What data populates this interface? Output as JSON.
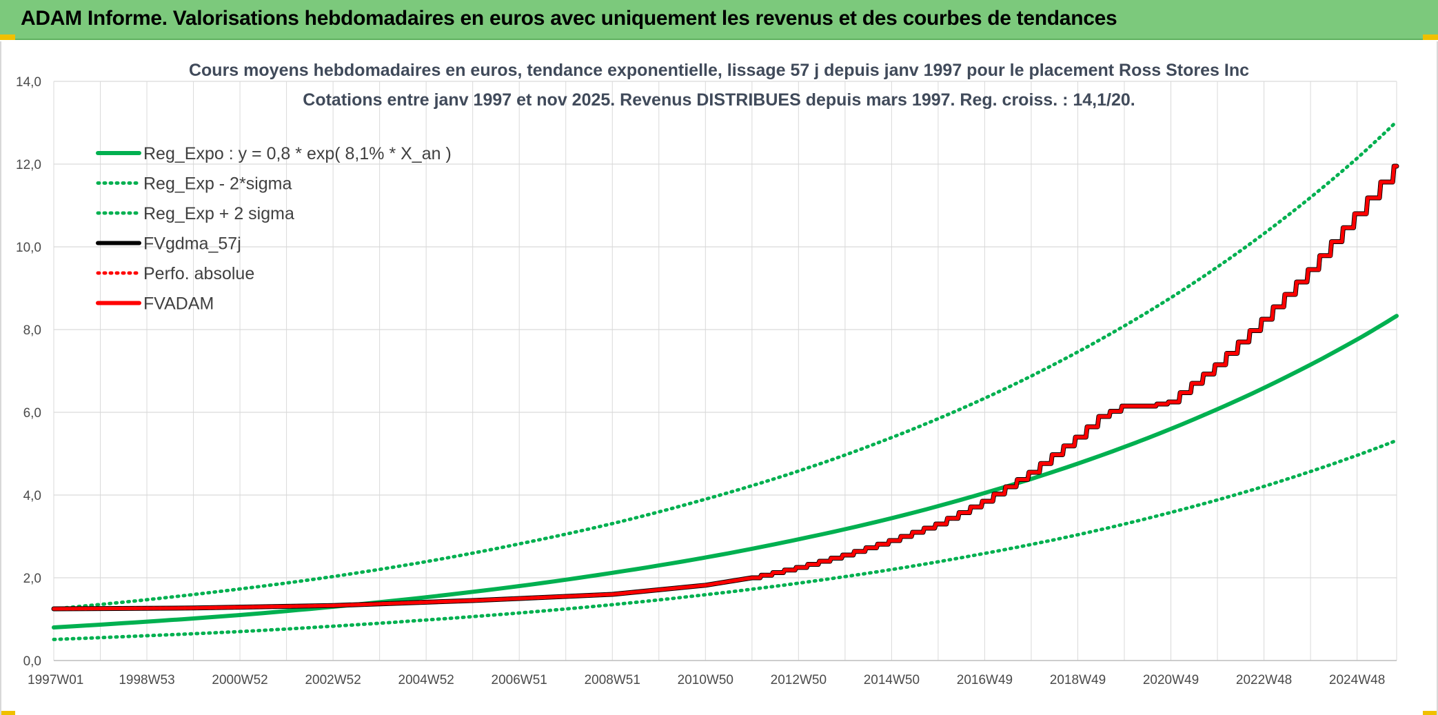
{
  "header": {
    "title": "ADAM Informe. Valorisations hebdomadaires en euros avec uniquement les revenus et des courbes de tendances"
  },
  "colors": {
    "header_bg": "#7cc97c",
    "green": "#00b050",
    "red": "#ff0000",
    "black": "#000000",
    "grid": "#d9d9d9"
  },
  "chart_data": {
    "type": "line",
    "title": "Cours moyens hebdomadaires en euros, tendance exponentielle, lissage 57 j depuis janv 1997 pour le placement Ross Stores Inc",
    "subtitle": "Cotations entre janv 1997 et nov 2025. Revenus DISTRIBUES depuis mars 1997. Reg. croiss. : 14,1/20.",
    "xlabel": "",
    "ylabel": "",
    "ylim": [
      0,
      14
    ],
    "xlim": [
      1997.0,
      2025.85
    ],
    "y_ticks": [
      "0,0",
      "2,0",
      "4,0",
      "6,0",
      "8,0",
      "10,0",
      "12,0",
      "14,0"
    ],
    "y_tick_values": [
      0,
      2,
      4,
      6,
      8,
      10,
      12,
      14
    ],
    "x_tick_labels": [
      "1997W01",
      "1998W53",
      "2000W52",
      "2002W52",
      "2004W52",
      "2006W51",
      "2008W51",
      "2010W50",
      "2012W50",
      "2014W50",
      "2016W49",
      "2018W49",
      "2020W49",
      "2022W48",
      "2024W48"
    ],
    "x_tick_years": [
      1997.0,
      1999.0,
      2001.0,
      2003.0,
      2005.0,
      2007.0,
      2009.0,
      2011.0,
      2013.0,
      2015.0,
      2017.0,
      2019.0,
      2021.0,
      2023.0,
      2025.0
    ],
    "grid": true,
    "legend_position": "top-left",
    "series": [
      {
        "name": "Reg_Expo : y = 0,8 * exp( 8,1% *  X_an )",
        "style": "solid-thick",
        "color": "#00b050",
        "x": [
          1997,
          1999,
          2001,
          2003,
          2005,
          2007,
          2009,
          2011,
          2013,
          2015,
          2017,
          2019,
          2021,
          2023,
          2025,
          2025.85
        ],
        "y": [
          0.8,
          0.94,
          1.1,
          1.3,
          1.53,
          1.8,
          2.12,
          2.49,
          2.93,
          3.44,
          4.05,
          4.76,
          5.6,
          6.59,
          7.76,
          8.33
        ]
      },
      {
        "name": "Reg_Exp - 2*sigma",
        "style": "dotted",
        "color": "#00b050",
        "x": [
          1997,
          1999,
          2001,
          2003,
          2005,
          2007,
          2009,
          2011,
          2013,
          2015,
          2017,
          2019,
          2021,
          2023,
          2025,
          2025.85
        ],
        "y": [
          0.51,
          0.6,
          0.7,
          0.83,
          0.98,
          1.15,
          1.35,
          1.59,
          1.87,
          2.2,
          2.59,
          3.04,
          3.58,
          4.21,
          4.96,
          5.32
        ]
      },
      {
        "name": "Reg_Exp + 2 sigma",
        "style": "dotted",
        "color": "#00b050",
        "x": [
          1997,
          1999,
          2001,
          2003,
          2005,
          2007,
          2009,
          2011,
          2013,
          2015,
          2017,
          2019,
          2021,
          2023,
          2025,
          2025.85
        ],
        "y": [
          1.25,
          1.47,
          1.73,
          2.03,
          2.39,
          2.82,
          3.31,
          3.9,
          4.58,
          5.39,
          6.34,
          7.46,
          8.77,
          10.32,
          12.14,
          13.03
        ]
      },
      {
        "name": "FVgdma_57j",
        "style": "solid-thick",
        "color": "#000000",
        "x": [
          1997,
          2000,
          2003,
          2006,
          2009,
          2011,
          2012,
          2013,
          2014,
          2015,
          2016,
          2017,
          2018,
          2019,
          2019.5,
          2020,
          2020.5,
          2021,
          2022,
          2023,
          2024,
          2025,
          2025.85
        ],
        "y": [
          1.25,
          1.27,
          1.33,
          1.45,
          1.6,
          1.82,
          2.0,
          2.25,
          2.55,
          2.9,
          3.3,
          3.85,
          4.55,
          5.4,
          5.9,
          6.15,
          6.15,
          6.25,
          7.15,
          8.25,
          9.45,
          10.8,
          11.95
        ]
      },
      {
        "name": "Perfo. absolue",
        "style": "dotted",
        "color": "#ff0000",
        "x": [
          1997,
          2000,
          2003,
          2006,
          2009,
          2011,
          2012,
          2013,
          2014,
          2015,
          2016,
          2017,
          2018,
          2019,
          2019.5,
          2020,
          2020.5,
          2021,
          2022,
          2023,
          2024,
          2025,
          2025.85
        ],
        "y": [
          1.25,
          1.27,
          1.33,
          1.45,
          1.6,
          1.82,
          2.0,
          2.25,
          2.55,
          2.9,
          3.3,
          3.85,
          4.55,
          5.4,
          5.9,
          6.15,
          6.15,
          6.25,
          7.15,
          8.25,
          9.45,
          10.8,
          11.95
        ]
      },
      {
        "name": "FVADAM",
        "style": "solid-thick-steps",
        "color": "#ff0000",
        "x": [
          1997,
          2000,
          2003,
          2006,
          2009,
          2011,
          2012,
          2013,
          2014,
          2015,
          2016,
          2017,
          2018,
          2019,
          2019.5,
          2020,
          2020.5,
          2021,
          2022,
          2023,
          2024,
          2025,
          2025.85
        ],
        "y": [
          1.25,
          1.27,
          1.33,
          1.45,
          1.6,
          1.82,
          2.0,
          2.25,
          2.55,
          2.9,
          3.3,
          3.85,
          4.55,
          5.4,
          5.9,
          6.15,
          6.15,
          6.25,
          7.15,
          8.25,
          9.45,
          10.8,
          11.95
        ]
      }
    ]
  }
}
